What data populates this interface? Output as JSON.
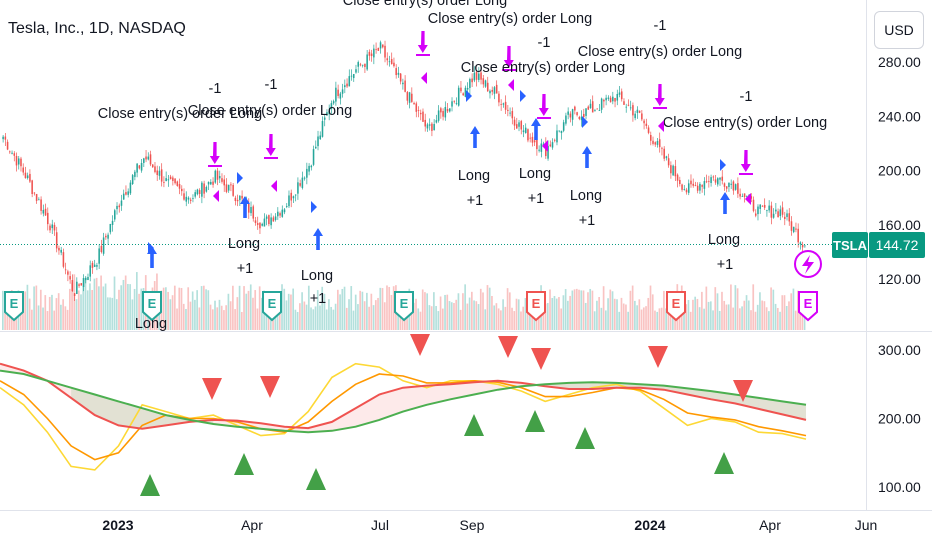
{
  "header": {
    "title": "Tesla, Inc., 1D, NASDAQ",
    "currency": "USD"
  },
  "colors": {
    "up": "#26a69a",
    "down": "#ef5350",
    "long_arrow": "#2962ff",
    "close_marker": "#d500f9",
    "ema_fast": "#ff9800",
    "ema_mid": "#fdd835",
    "ma_red": "#ef5350",
    "ma_green": "#4caf50",
    "last_price_bg": "#089981"
  },
  "price_axis": {
    "ticks": [
      "280.00",
      "240.00",
      "200.00",
      "160.00",
      "120.00"
    ],
    "last_price": {
      "symbol": "TSLA",
      "value": "144.72"
    }
  },
  "indicator_axis": {
    "ticks": [
      "300.00",
      "200.00",
      "100.00"
    ]
  },
  "time_axis": {
    "ticks": [
      "2023",
      "Apr",
      "Jul",
      "Sep",
      "2024",
      "Apr",
      "Jun"
    ]
  },
  "earnings_badges": [
    {
      "label": "E",
      "kind": "reported-up"
    },
    {
      "label": "E",
      "kind": "reported-up"
    },
    {
      "label": "E",
      "kind": "reported-up"
    },
    {
      "label": "E",
      "kind": "reported-up"
    },
    {
      "label": "E",
      "kind": "reported-down"
    },
    {
      "label": "E",
      "kind": "reported-down"
    },
    {
      "label": "E",
      "kind": "upcoming"
    }
  ],
  "lightning_icon": "lightning-icon",
  "strategy_labels": {
    "long": "Long",
    "plus_one": "+1",
    "minus_one": "-1",
    "close_entry": "Close entry(s) order Long"
  },
  "chart_data": {
    "type": "candlestick",
    "symbol": "TSLA",
    "timeframe": "1D",
    "exchange": "NASDAQ",
    "last_close": 144.72,
    "ylim": [
      100,
      300
    ],
    "close_series": [
      {
        "t": "2022-11",
        "v": 225
      },
      {
        "t": "2022-12-01",
        "v": 195
      },
      {
        "t": "2022-12-15",
        "v": 160
      },
      {
        "t": "2023-01-03",
        "v": 110
      },
      {
        "t": "2023-01-20",
        "v": 135
      },
      {
        "t": "2023-02-01",
        "v": 180
      },
      {
        "t": "2023-02-15",
        "v": 210
      },
      {
        "t": "2023-03-01",
        "v": 190
      },
      {
        "t": "2023-03-15",
        "v": 180
      },
      {
        "t": "2023-04-01",
        "v": 195
      },
      {
        "t": "2023-04-15",
        "v": 180
      },
      {
        "t": "2023-05-01",
        "v": 160
      },
      {
        "t": "2023-05-15",
        "v": 175
      },
      {
        "t": "2023-06-01",
        "v": 205
      },
      {
        "t": "2023-06-15",
        "v": 255
      },
      {
        "t": "2023-07-01",
        "v": 275
      },
      {
        "t": "2023-07-15",
        "v": 290
      },
      {
        "t": "2023-08-01",
        "v": 260
      },
      {
        "t": "2023-08-15",
        "v": 230
      },
      {
        "t": "2023-09-01",
        "v": 250
      },
      {
        "t": "2023-09-15",
        "v": 270
      },
      {
        "t": "2023-10-01",
        "v": 255
      },
      {
        "t": "2023-10-15",
        "v": 230
      },
      {
        "t": "2023-11-01",
        "v": 215
      },
      {
        "t": "2023-11-15",
        "v": 240
      },
      {
        "t": "2023-12-01",
        "v": 245
      },
      {
        "t": "2023-12-15",
        "v": 255
      },
      {
        "t": "2024-01-01",
        "v": 240
      },
      {
        "t": "2024-01-15",
        "v": 210
      },
      {
        "t": "2024-02-01",
        "v": 185
      },
      {
        "t": "2024-02-15",
        "v": 195
      },
      {
        "t": "2024-03-01",
        "v": 190
      },
      {
        "t": "2024-03-15",
        "v": 170
      },
      {
        "t": "2024-04-01",
        "v": 170
      },
      {
        "t": "2024-04-19",
        "v": 144.72
      }
    ],
    "indicator_series": [
      {
        "name": "",
        "color": "#fdd835",
        "values": [
          245,
          220,
          180,
          130,
          125,
          160,
          220,
          210,
          200,
          205,
          190,
          175,
          178,
          210,
          260,
          280,
          275,
          255,
          245,
          255,
          255,
          250,
          240,
          225,
          235,
          245,
          250,
          240,
          215,
          190,
          200,
          195,
          180,
          178,
          170
        ]
      },
      {
        "name": "",
        "color": "#ff9800",
        "values": [
          255,
          235,
          200,
          160,
          140,
          150,
          190,
          205,
          200,
          200,
          195,
          185,
          180,
          195,
          225,
          250,
          265,
          262,
          252,
          252,
          255,
          253,
          245,
          232,
          232,
          238,
          245,
          242,
          228,
          208,
          202,
          198,
          188,
          182,
          175
        ]
      },
      {
        "name": "",
        "color": "#ef5350",
        "values": [
          280,
          270,
          255,
          230,
          205,
          190,
          185,
          190,
          195,
          198,
          197,
          193,
          188,
          186,
          195,
          215,
          235,
          245,
          248,
          250,
          253,
          255,
          252,
          247,
          243,
          243,
          245,
          245,
          242,
          235,
          228,
          222,
          214,
          206,
          198
        ]
      },
      {
        "name": "",
        "color": "#4caf50",
        "values": [
          270,
          265,
          255,
          245,
          235,
          225,
          215,
          205,
          198,
          192,
          188,
          185,
          182,
          180,
          182,
          188,
          198,
          210,
          220,
          228,
          235,
          242,
          247,
          250,
          252,
          253,
          252,
          250,
          248,
          244,
          240,
          235,
          230,
          225,
          220
        ]
      }
    ]
  }
}
